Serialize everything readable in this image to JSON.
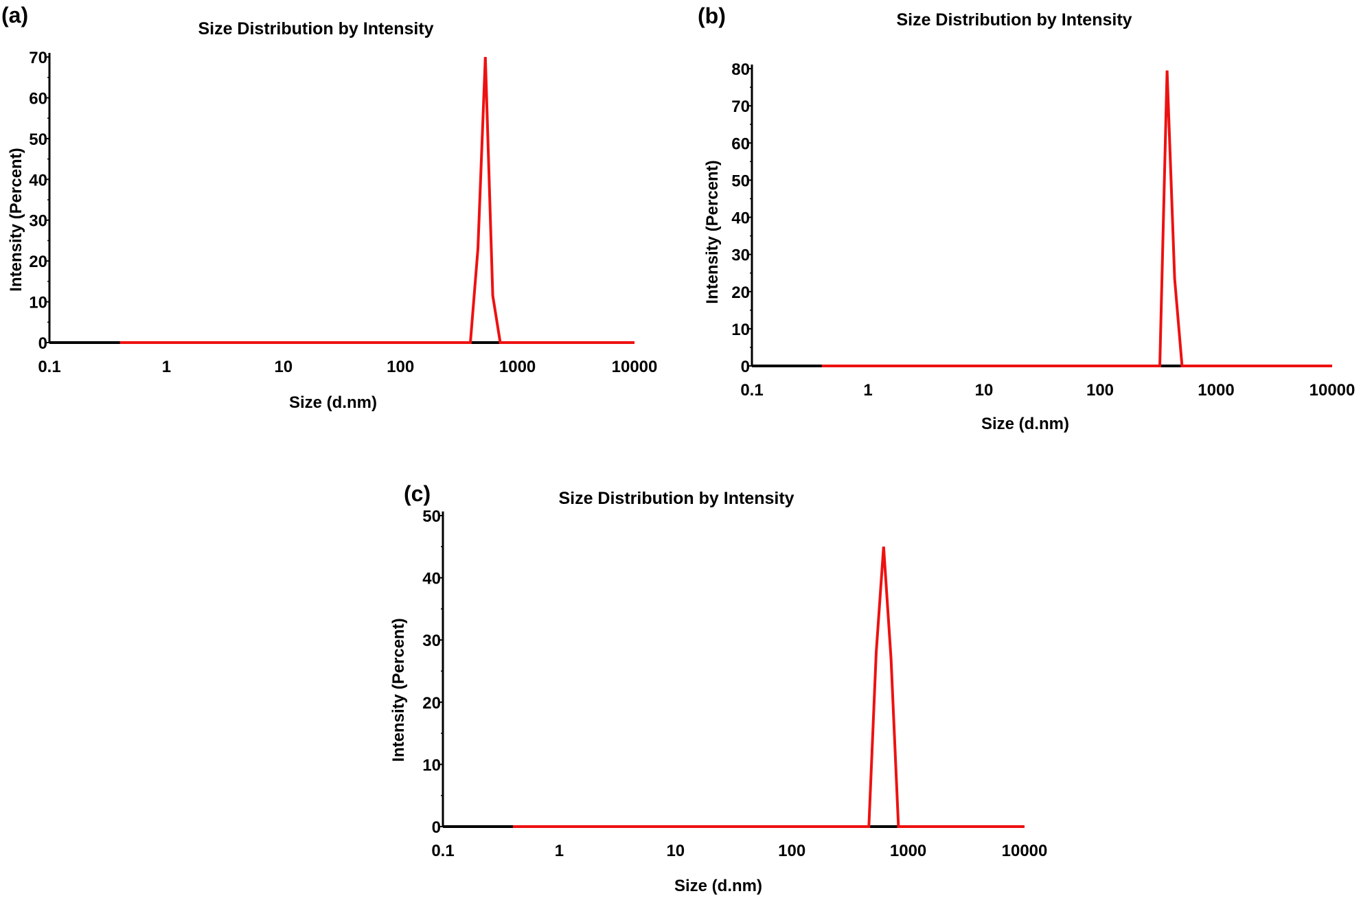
{
  "colors": {
    "series": "#ee1111",
    "axis": "#000000",
    "baseline": "#000000",
    "background": "#ffffff"
  },
  "chart_data": [
    {
      "type": "line",
      "panel_label": "(a)",
      "title": "Size Distribution by Intensity",
      "xlabel": "Size (d.nm)",
      "ylabel": "Intensity (Percent)",
      "xscale": "log",
      "xlim": [
        0.1,
        10000
      ],
      "ylim": [
        0,
        70
      ],
      "grid": false,
      "x_ticks": [
        {
          "value": 0.1,
          "label": "0.1"
        },
        {
          "value": 1,
          "label": "1"
        },
        {
          "value": 10,
          "label": "10"
        },
        {
          "value": 100,
          "label": "100"
        },
        {
          "value": 1000,
          "label": "1000"
        },
        {
          "value": 10000,
          "label": "10000"
        }
      ],
      "y_ticks": [
        {
          "value": 0,
          "label": "0"
        },
        {
          "value": 10,
          "label": "10"
        },
        {
          "value": 20,
          "label": "20"
        },
        {
          "value": 30,
          "label": "30"
        },
        {
          "value": 40,
          "label": "40"
        },
        {
          "value": 50,
          "label": "50"
        },
        {
          "value": 60,
          "label": "60"
        },
        {
          "value": 70,
          "label": "70"
        }
      ],
      "series": [
        {
          "name": "Intensity",
          "x": [
            0.4,
            1,
            10,
            100,
            396,
            459,
            531,
            615,
            712,
            1000,
            10000
          ],
          "y": [
            0,
            0,
            0,
            0,
            0,
            23,
            70,
            11.5,
            0,
            0,
            0
          ]
        }
      ]
    },
    {
      "type": "line",
      "panel_label": "(b)",
      "title": "Size Distribution by Intensity",
      "xlabel": "Size (d.nm)",
      "ylabel": "Intensity (Percent)",
      "xscale": "log",
      "xlim": [
        0.1,
        10000
      ],
      "ylim": [
        0,
        80
      ],
      "grid": false,
      "x_ticks": [
        {
          "value": 0.1,
          "label": "0.1"
        },
        {
          "value": 1,
          "label": "1"
        },
        {
          "value": 10,
          "label": "10"
        },
        {
          "value": 100,
          "label": "100"
        },
        {
          "value": 1000,
          "label": "1000"
        },
        {
          "value": 10000,
          "label": "10000"
        }
      ],
      "y_ticks": [
        {
          "value": 0,
          "label": "0"
        },
        {
          "value": 10,
          "label": "10"
        },
        {
          "value": 20,
          "label": "20"
        },
        {
          "value": 30,
          "label": "30"
        },
        {
          "value": 40,
          "label": "40"
        },
        {
          "value": 50,
          "label": "50"
        },
        {
          "value": 60,
          "label": "60"
        },
        {
          "value": 70,
          "label": "70"
        },
        {
          "value": 80,
          "label": "80"
        }
      ],
      "series": [
        {
          "name": "Intensity",
          "x": [
            0.4,
            1,
            10,
            100,
            327,
            378,
            439,
            509,
            1000,
            10000
          ],
          "y": [
            0,
            0,
            0,
            0,
            0,
            79.5,
            23.5,
            0,
            0,
            0
          ]
        }
      ]
    },
    {
      "type": "line",
      "panel_label": "(c)",
      "title": "Size Distribution by Intensity",
      "xlabel": "Size (d.nm)",
      "ylabel": "Intensity (Percent)",
      "xscale": "log",
      "xlim": [
        0.1,
        10000
      ],
      "ylim": [
        0,
        50
      ],
      "grid": false,
      "x_ticks": [
        {
          "value": 0.1,
          "label": "0.1"
        },
        {
          "value": 1,
          "label": "1"
        },
        {
          "value": 10,
          "label": "10"
        },
        {
          "value": 100,
          "label": "100"
        },
        {
          "value": 1000,
          "label": "1000"
        },
        {
          "value": 10000,
          "label": "10000"
        }
      ],
      "y_ticks": [
        {
          "value": 0,
          "label": "0"
        },
        {
          "value": 10,
          "label": "10"
        },
        {
          "value": 20,
          "label": "20"
        },
        {
          "value": 30,
          "label": "30"
        },
        {
          "value": 40,
          "label": "40"
        },
        {
          "value": 50,
          "label": "50"
        }
      ],
      "series": [
        {
          "name": "Intensity",
          "x": [
            0.4,
            1,
            10,
            100,
            459,
            531,
            615,
            712,
            825,
            1000,
            10000
          ],
          "y": [
            0,
            0,
            0,
            0,
            0,
            28,
            45,
            27,
            0,
            0,
            0
          ]
        }
      ]
    }
  ]
}
